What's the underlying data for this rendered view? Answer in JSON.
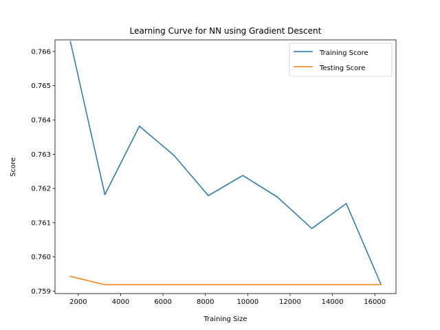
{
  "chart_data": {
    "type": "line",
    "title": "Learning Curve for NN using Gradient Descent",
    "xlabel": "Training Size",
    "ylabel": "Score",
    "xlim": [
      900,
      17000
    ],
    "ylim": [
      0.75893,
      0.76634
    ],
    "xticks": [
      2000,
      4000,
      6000,
      8000,
      10000,
      12000,
      14000,
      16000
    ],
    "yticks": [
      0.759,
      0.76,
      0.761,
      0.762,
      0.763,
      0.764,
      0.765,
      0.766
    ],
    "xtick_labels": [
      "2000",
      "4000",
      "6000",
      "8000",
      "10000",
      "12000",
      "14000",
      "16000"
    ],
    "ytick_labels": [
      "0.759",
      "0.760",
      "0.761",
      "0.762",
      "0.763",
      "0.764",
      "0.765",
      "0.766"
    ],
    "grid": false,
    "legend_position": "top-right",
    "x": [
      1628,
      3256,
      4884,
      6512,
      8141,
      9769,
      11397,
      13025,
      14653,
      16281
    ],
    "series": [
      {
        "name": "Training Score",
        "color": "#1f77b4",
        "values": [
          0.76629,
          0.76182,
          0.76382,
          0.76297,
          0.76179,
          0.76238,
          0.76175,
          0.76083,
          0.76156,
          0.75921
        ]
      },
      {
        "name": "Testing Score",
        "color": "#ff7f0e",
        "values": [
          0.75943,
          0.75919,
          0.75919,
          0.75919,
          0.75919,
          0.75919,
          0.75919,
          0.75919,
          0.75919,
          0.75919
        ]
      }
    ]
  }
}
